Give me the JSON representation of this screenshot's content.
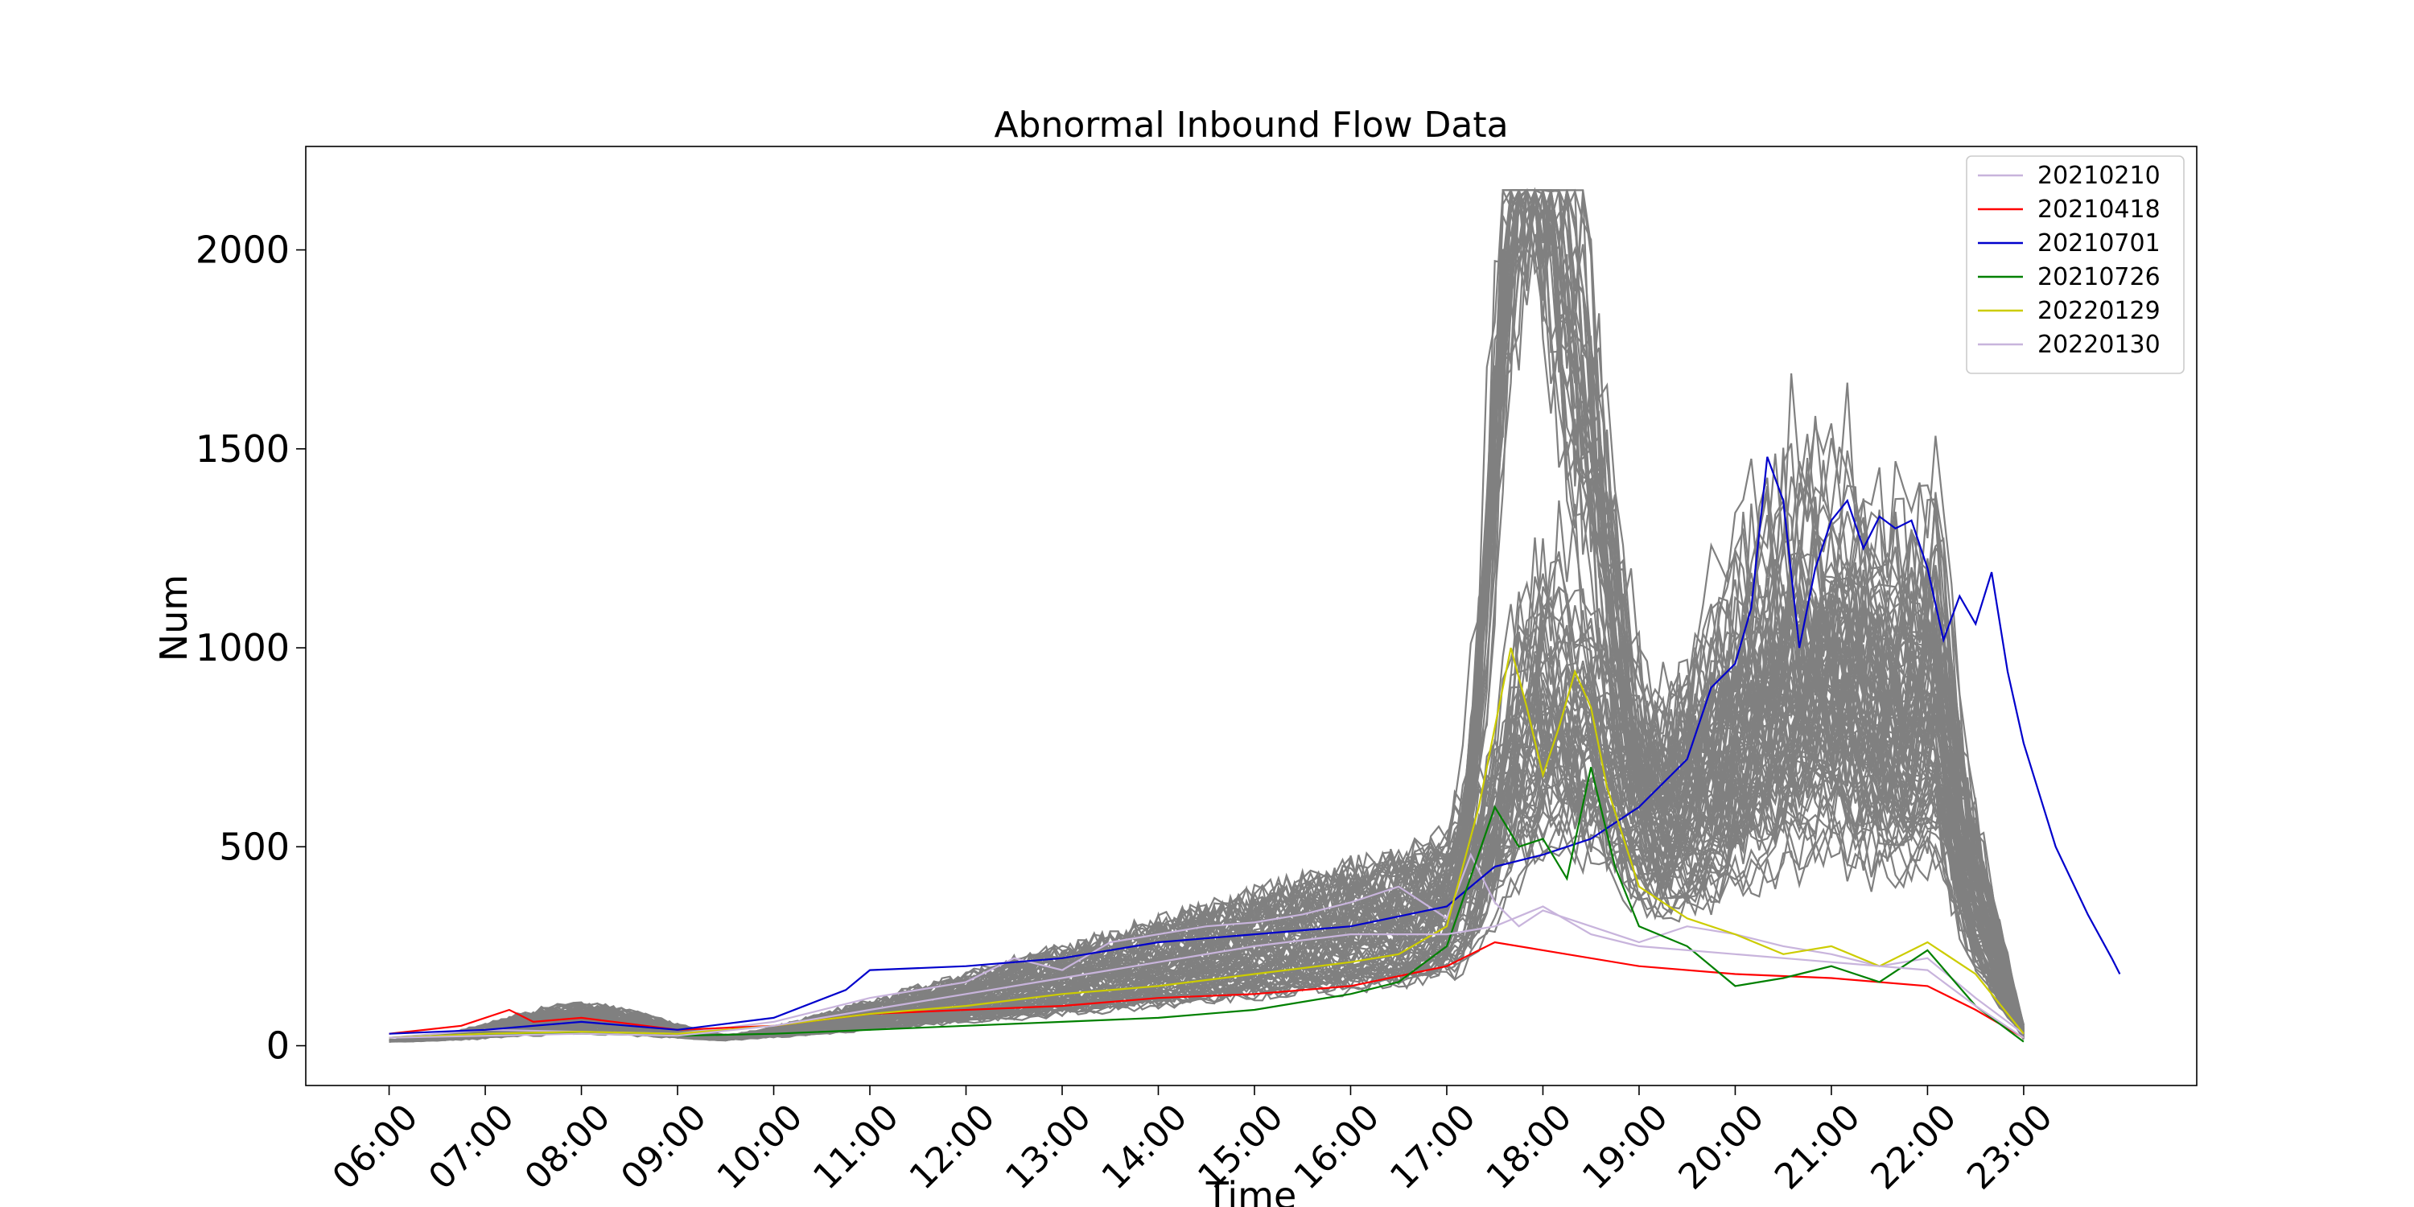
{
  "chart_data": {
    "type": "line",
    "title": "Abnormal Inbound Flow Data",
    "xlabel": "Time",
    "ylabel": "Num",
    "x_ticks": [
      "06:00",
      "07:00",
      "08:00",
      "09:00",
      "10:00",
      "11:00",
      "12:00",
      "13:00",
      "14:00",
      "15:00",
      "16:00",
      "17:00",
      "18:00",
      "19:00",
      "20:00",
      "21:00",
      "22:00",
      "23:00"
    ],
    "y_ticks": [
      0,
      500,
      1000,
      1500,
      2000
    ],
    "xlim": [
      "05:08",
      "24:48"
    ],
    "ylim": [
      -100,
      2260
    ],
    "grid": false,
    "legend_position": "top-right",
    "background_series": {
      "color": "#808080",
      "count": 90,
      "description_values": {
        "peak_morning_max": 150,
        "evening_peak_max": 2150,
        "evening_peak_time": "18:15"
      }
    },
    "series": [
      {
        "name": "20210210",
        "color": "#c8b4dc",
        "points": [
          [
            "06:00",
            20
          ],
          [
            "07:00",
            40
          ],
          [
            "08:00",
            35
          ],
          [
            "09:00",
            30
          ],
          [
            "10:00",
            60
          ],
          [
            "11:00",
            120
          ],
          [
            "12:00",
            160
          ],
          [
            "12:30",
            220
          ],
          [
            "13:00",
            190
          ],
          [
            "13:30",
            260
          ],
          [
            "14:00",
            280
          ],
          [
            "14:30",
            300
          ],
          [
            "15:00",
            310
          ],
          [
            "15:30",
            330
          ],
          [
            "16:00",
            360
          ],
          [
            "16:30",
            400
          ],
          [
            "17:00",
            320
          ],
          [
            "17:15",
            480
          ],
          [
            "17:30",
            360
          ],
          [
            "17:45",
            300
          ],
          [
            "18:00",
            340
          ],
          [
            "18:30",
            300
          ],
          [
            "19:00",
            260
          ],
          [
            "19:30",
            300
          ],
          [
            "20:00",
            280
          ],
          [
            "20:30",
            250
          ],
          [
            "21:00",
            230
          ],
          [
            "21:30",
            200
          ],
          [
            "22:00",
            220
          ],
          [
            "22:30",
            120
          ],
          [
            "23:00",
            30
          ]
        ]
      },
      {
        "name": "20210418",
        "color": "#ff0000",
        "points": [
          [
            "06:00",
            30
          ],
          [
            "06:45",
            50
          ],
          [
            "07:15",
            90
          ],
          [
            "07:30",
            60
          ],
          [
            "08:00",
            70
          ],
          [
            "09:00",
            40
          ],
          [
            "10:00",
            50
          ],
          [
            "11:00",
            80
          ],
          [
            "12:00",
            90
          ],
          [
            "13:00",
            100
          ],
          [
            "14:00",
            120
          ],
          [
            "15:00",
            130
          ],
          [
            "16:00",
            150
          ],
          [
            "17:00",
            200
          ],
          [
            "17:30",
            260
          ],
          [
            "18:00",
            240
          ],
          [
            "19:00",
            200
          ],
          [
            "20:00",
            180
          ],
          [
            "21:00",
            170
          ],
          [
            "22:00",
            150
          ],
          [
            "22:30",
            90
          ],
          [
            "23:00",
            20
          ]
        ]
      },
      {
        "name": "20210701",
        "color": "#0000cc",
        "points": [
          [
            "06:00",
            30
          ],
          [
            "07:00",
            40
          ],
          [
            "08:00",
            60
          ],
          [
            "09:00",
            40
          ],
          [
            "10:00",
            70
          ],
          [
            "10:45",
            140
          ],
          [
            "11:00",
            190
          ],
          [
            "12:00",
            200
          ],
          [
            "13:00",
            220
          ],
          [
            "14:00",
            260
          ],
          [
            "15:00",
            280
          ],
          [
            "16:00",
            300
          ],
          [
            "17:00",
            350
          ],
          [
            "17:30",
            450
          ],
          [
            "18:00",
            480
          ],
          [
            "18:30",
            520
          ],
          [
            "19:00",
            600
          ],
          [
            "19:30",
            720
          ],
          [
            "19:45",
            900
          ],
          [
            "20:00",
            960
          ],
          [
            "20:10",
            1100
          ],
          [
            "20:20",
            1480
          ],
          [
            "20:30",
            1370
          ],
          [
            "20:40",
            1000
          ],
          [
            "20:50",
            1200
          ],
          [
            "21:00",
            1320
          ],
          [
            "21:10",
            1370
          ],
          [
            "21:20",
            1250
          ],
          [
            "21:30",
            1330
          ],
          [
            "21:40",
            1300
          ],
          [
            "21:50",
            1320
          ],
          [
            "22:00",
            1200
          ],
          [
            "22:10",
            1020
          ],
          [
            "22:20",
            1130
          ],
          [
            "22:30",
            1060
          ],
          [
            "22:40",
            1190
          ],
          [
            "22:50",
            940
          ],
          [
            "23:00",
            760
          ],
          [
            "23:20",
            500
          ],
          [
            "23:40",
            330
          ],
          [
            "23:55",
            220
          ],
          [
            "24:00",
            180
          ]
        ]
      },
      {
        "name": "20210726",
        "color": "#008000",
        "points": [
          [
            "06:00",
            20
          ],
          [
            "07:00",
            30
          ],
          [
            "08:00",
            30
          ],
          [
            "09:00",
            25
          ],
          [
            "10:00",
            30
          ],
          [
            "11:00",
            40
          ],
          [
            "12:00",
            50
          ],
          [
            "13:00",
            60
          ],
          [
            "14:00",
            70
          ],
          [
            "15:00",
            90
          ],
          [
            "16:00",
            130
          ],
          [
            "16:30",
            160
          ],
          [
            "17:00",
            250
          ],
          [
            "17:30",
            600
          ],
          [
            "17:45",
            500
          ],
          [
            "18:00",
            520
          ],
          [
            "18:15",
            420
          ],
          [
            "18:30",
            700
          ],
          [
            "18:45",
            450
          ],
          [
            "19:00",
            300
          ],
          [
            "19:30",
            250
          ],
          [
            "20:00",
            150
          ],
          [
            "20:30",
            170
          ],
          [
            "21:00",
            200
          ],
          [
            "21:30",
            160
          ],
          [
            "22:00",
            240
          ],
          [
            "22:30",
            100
          ],
          [
            "23:00",
            10
          ]
        ]
      },
      {
        "name": "20220129",
        "color": "#cccc00",
        "points": [
          [
            "06:00",
            20
          ],
          [
            "07:00",
            30
          ],
          [
            "08:00",
            35
          ],
          [
            "09:00",
            30
          ],
          [
            "10:00",
            50
          ],
          [
            "11:00",
            80
          ],
          [
            "12:00",
            100
          ],
          [
            "13:00",
            130
          ],
          [
            "14:00",
            150
          ],
          [
            "15:00",
            180
          ],
          [
            "16:00",
            210
          ],
          [
            "16:30",
            230
          ],
          [
            "17:00",
            300
          ],
          [
            "17:20",
            600
          ],
          [
            "17:40",
            1000
          ],
          [
            "17:50",
            850
          ],
          [
            "18:00",
            680
          ],
          [
            "18:10",
            800
          ],
          [
            "18:20",
            940
          ],
          [
            "18:30",
            850
          ],
          [
            "18:40",
            650
          ],
          [
            "19:00",
            400
          ],
          [
            "19:30",
            320
          ],
          [
            "20:00",
            280
          ],
          [
            "20:30",
            230
          ],
          [
            "21:00",
            250
          ],
          [
            "21:30",
            200
          ],
          [
            "22:00",
            260
          ],
          [
            "22:30",
            180
          ],
          [
            "23:00",
            30
          ]
        ]
      },
      {
        "name": "20220130",
        "color": "#c8b4dc",
        "points": [
          [
            "06:00",
            20
          ],
          [
            "07:00",
            25
          ],
          [
            "08:00",
            30
          ],
          [
            "09:00",
            25
          ],
          [
            "10:00",
            50
          ],
          [
            "11:00",
            90
          ],
          [
            "12:00",
            130
          ],
          [
            "13:00",
            170
          ],
          [
            "14:00",
            210
          ],
          [
            "15:00",
            250
          ],
          [
            "16:00",
            280
          ],
          [
            "17:00",
            280
          ],
          [
            "17:30",
            300
          ],
          [
            "18:00",
            350
          ],
          [
            "18:30",
            280
          ],
          [
            "19:00",
            250
          ],
          [
            "20:00",
            230
          ],
          [
            "21:00",
            210
          ],
          [
            "22:00",
            190
          ],
          [
            "22:30",
            100
          ],
          [
            "23:00",
            20
          ]
        ]
      }
    ]
  }
}
